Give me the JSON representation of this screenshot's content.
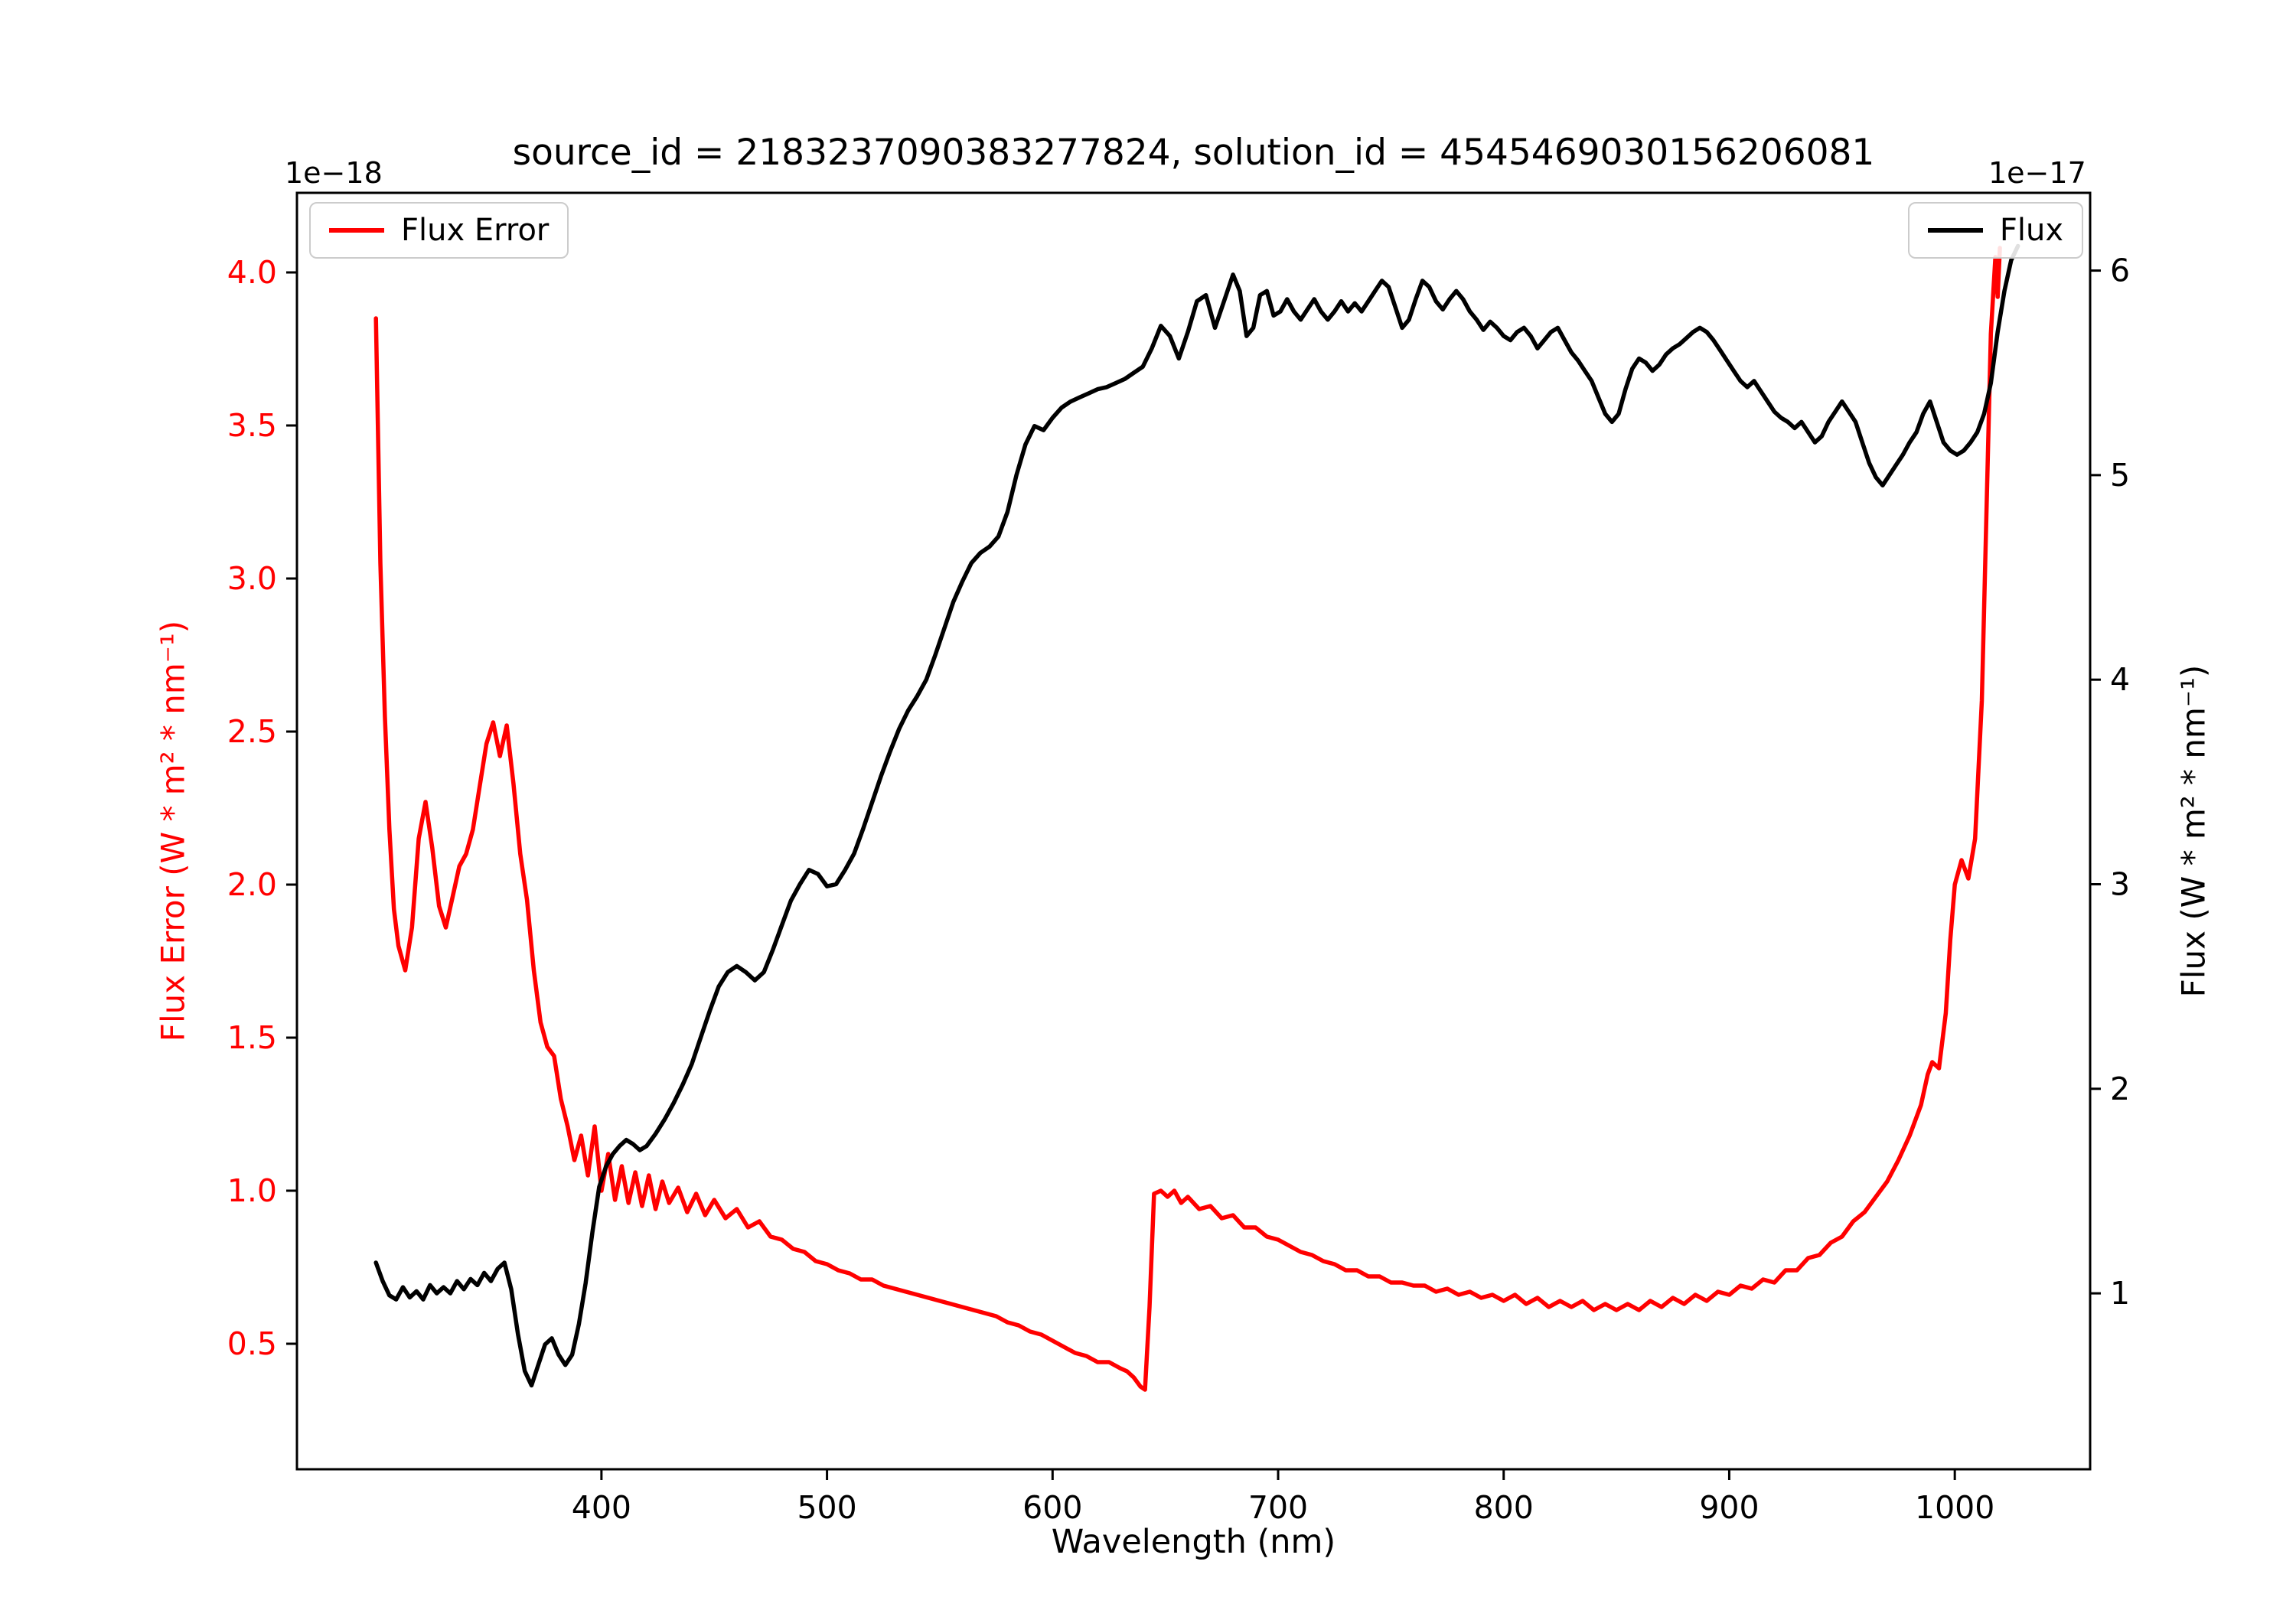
{
  "figure": {
    "title": "source_id = 2183237090383277824, solution_id = 4545469030156206081",
    "xlabel": "Wavelength (nm)",
    "ylabel_left": "Flux Error (W * m² * nm⁻¹)",
    "ylabel_right": "Flux (W * m² * nm⁻¹)",
    "offset_left": "1e−18",
    "offset_right": "1e−17",
    "legend_left_label": "Flux Error",
    "legend_right_label": "Flux"
  },
  "colors": {
    "flux_error": "#ff0000",
    "flux": "#000000",
    "spine": "#000000",
    "legend_border": "#cccccc"
  },
  "chart_data": {
    "type": "line",
    "title": "source_id = 2183237090383277824, solution_id = 4545469030156206081",
    "xlabel": "Wavelength (nm)",
    "ylabel_left": "Flux Error (W * m² * nm⁻¹)",
    "ylabel_right": "Flux (W * m² * nm⁻¹)",
    "y_offset_left": "1e−18",
    "y_offset_right": "1e−17",
    "grid": false,
    "xlim": [
      265,
      1060
    ],
    "ylim_left": [
      0.09,
      4.26
    ],
    "ylim_right": [
      0.14,
      6.38
    ],
    "xticks": [
      400,
      500,
      600,
      700,
      800,
      900,
      1000
    ],
    "yticks_left": [
      0.5,
      1.0,
      1.5,
      2.0,
      2.5,
      3.0,
      3.5,
      4.0
    ],
    "yticks_right": [
      1,
      2,
      3,
      4,
      5,
      6
    ],
    "legend": [
      {
        "label": "Flux Error",
        "color": "#ff0000",
        "position": "upper-left"
      },
      {
        "label": "Flux",
        "color": "#000000",
        "position": "upper-right"
      }
    ],
    "series": [
      {
        "name": "Flux Error",
        "axis": "left",
        "units_scale": "1e-18",
        "color": "#ff0000",
        "x": [
          300,
          302,
          304,
          306,
          308,
          310,
          313,
          316,
          319,
          322,
          325,
          328,
          331,
          334,
          337,
          340,
          343,
          346,
          349,
          352,
          355,
          358,
          361,
          364,
          367,
          370,
          373,
          376,
          379,
          382,
          385,
          388,
          391,
          394,
          397,
          400,
          403,
          406,
          409,
          412,
          415,
          418,
          421,
          424,
          427,
          430,
          434,
          438,
          442,
          446,
          450,
          455,
          460,
          465,
          470,
          475,
          480,
          485,
          490,
          495,
          500,
          505,
          510,
          515,
          520,
          525,
          530,
          535,
          540,
          545,
          550,
          555,
          560,
          565,
          570,
          575,
          580,
          585,
          590,
          595,
          600,
          605,
          610,
          615,
          620,
          625,
          630,
          633,
          636,
          639,
          641,
          643,
          645,
          648,
          651,
          654,
          657,
          660,
          665,
          670,
          675,
          680,
          685,
          690,
          695,
          700,
          705,
          710,
          715,
          720,
          725,
          730,
          735,
          740,
          745,
          750,
          755,
          760,
          765,
          770,
          775,
          780,
          785,
          790,
          795,
          800,
          805,
          810,
          815,
          820,
          825,
          830,
          835,
          840,
          845,
          850,
          855,
          860,
          865,
          870,
          875,
          880,
          885,
          890,
          895,
          900,
          905,
          910,
          915,
          920,
          925,
          930,
          935,
          940,
          945,
          950,
          955,
          960,
          965,
          970,
          975,
          980,
          985,
          988,
          990,
          993,
          996,
          998,
          1000,
          1003,
          1006,
          1009,
          1012,
          1014,
          1016,
          1018,
          1019,
          1020
        ],
        "y": [
          3.85,
          3.05,
          2.55,
          2.18,
          1.92,
          1.8,
          1.72,
          1.86,
          2.15,
          2.27,
          2.12,
          1.93,
          1.86,
          1.96,
          2.06,
          2.1,
          2.18,
          2.32,
          2.46,
          2.53,
          2.42,
          2.52,
          2.33,
          2.1,
          1.95,
          1.72,
          1.55,
          1.47,
          1.44,
          1.3,
          1.21,
          1.1,
          1.18,
          1.05,
          1.21,
          1.0,
          1.12,
          0.97,
          1.08,
          0.96,
          1.06,
          0.95,
          1.05,
          0.94,
          1.03,
          0.96,
          1.01,
          0.93,
          0.99,
          0.92,
          0.97,
          0.91,
          0.94,
          0.88,
          0.9,
          0.85,
          0.84,
          0.81,
          0.8,
          0.77,
          0.76,
          0.74,
          0.73,
          0.71,
          0.71,
          0.69,
          0.68,
          0.67,
          0.66,
          0.65,
          0.64,
          0.63,
          0.62,
          0.61,
          0.6,
          0.59,
          0.57,
          0.56,
          0.54,
          0.53,
          0.51,
          0.49,
          0.47,
          0.46,
          0.44,
          0.44,
          0.42,
          0.41,
          0.39,
          0.36,
          0.35,
          0.62,
          0.99,
          1.0,
          0.98,
          1.0,
          0.96,
          0.98,
          0.94,
          0.95,
          0.91,
          0.92,
          0.88,
          0.88,
          0.85,
          0.84,
          0.82,
          0.8,
          0.79,
          0.77,
          0.76,
          0.74,
          0.74,
          0.72,
          0.72,
          0.7,
          0.7,
          0.69,
          0.69,
          0.67,
          0.68,
          0.66,
          0.67,
          0.65,
          0.66,
          0.64,
          0.66,
          0.63,
          0.65,
          0.62,
          0.64,
          0.62,
          0.64,
          0.61,
          0.63,
          0.61,
          0.63,
          0.61,
          0.64,
          0.62,
          0.65,
          0.63,
          0.66,
          0.64,
          0.67,
          0.66,
          0.69,
          0.68,
          0.71,
          0.7,
          0.74,
          0.74,
          0.78,
          0.79,
          0.83,
          0.85,
          0.9,
          0.93,
          0.98,
          1.03,
          1.1,
          1.18,
          1.28,
          1.38,
          1.42,
          1.4,
          1.58,
          1.82,
          2.0,
          2.08,
          2.02,
          2.15,
          2.6,
          3.2,
          3.8,
          4.05,
          3.92,
          4.08
        ]
      },
      {
        "name": "Flux",
        "axis": "right",
        "units_scale": "1e-17",
        "color": "#000000",
        "x": [
          300,
          303,
          306,
          309,
          312,
          315,
          318,
          321,
          324,
          327,
          330,
          333,
          336,
          339,
          342,
          345,
          348,
          351,
          354,
          357,
          360,
          363,
          366,
          369,
          372,
          375,
          378,
          381,
          384,
          387,
          390,
          393,
          396,
          399,
          402,
          405,
          408,
          411,
          414,
          417,
          420,
          424,
          428,
          432,
          436,
          440,
          444,
          448,
          452,
          456,
          460,
          464,
          468,
          472,
          476,
          480,
          484,
          488,
          492,
          496,
          500,
          504,
          508,
          512,
          516,
          520,
          524,
          528,
          532,
          536,
          540,
          544,
          548,
          552,
          556,
          560,
          564,
          568,
          572,
          576,
          580,
          584,
          588,
          592,
          596,
          600,
          604,
          608,
          612,
          616,
          620,
          624,
          628,
          632,
          636,
          640,
          644,
          648,
          652,
          656,
          660,
          664,
          668,
          672,
          676,
          680,
          683,
          686,
          689,
          692,
          695,
          698,
          701,
          704,
          707,
          710,
          713,
          716,
          719,
          722,
          725,
          728,
          731,
          734,
          737,
          740,
          743,
          746,
          749,
          752,
          755,
          758,
          761,
          764,
          767,
          770,
          773,
          776,
          779,
          782,
          785,
          788,
          791,
          794,
          797,
          800,
          803,
          806,
          809,
          812,
          815,
          818,
          821,
          824,
          827,
          830,
          833,
          836,
          839,
          842,
          845,
          848,
          851,
          854,
          857,
          860,
          863,
          866,
          869,
          872,
          875,
          878,
          881,
          884,
          887,
          890,
          893,
          896,
          899,
          902,
          905,
          908,
          911,
          914,
          917,
          920,
          923,
          926,
          929,
          932,
          935,
          938,
          941,
          944,
          947,
          950,
          953,
          956,
          959,
          962,
          965,
          968,
          971,
          974,
          977,
          980,
          983,
          986,
          989,
          992,
          995,
          998,
          1001,
          1004,
          1007,
          1010,
          1013,
          1016,
          1019,
          1022,
          1025,
          1028
        ],
        "y": [
          1.15,
          1.06,
          0.99,
          0.97,
          1.03,
          0.98,
          1.01,
          0.97,
          1.04,
          1.0,
          1.03,
          1.0,
          1.06,
          1.02,
          1.07,
          1.04,
          1.1,
          1.06,
          1.12,
          1.15,
          1.02,
          0.8,
          0.62,
          0.55,
          0.65,
          0.75,
          0.78,
          0.7,
          0.65,
          0.7,
          0.85,
          1.05,
          1.3,
          1.52,
          1.62,
          1.68,
          1.72,
          1.75,
          1.73,
          1.7,
          1.72,
          1.78,
          1.85,
          1.93,
          2.02,
          2.12,
          2.25,
          2.38,
          2.5,
          2.57,
          2.6,
          2.57,
          2.53,
          2.57,
          2.68,
          2.8,
          2.92,
          3.0,
          3.07,
          3.05,
          2.99,
          3.0,
          3.07,
          3.15,
          3.27,
          3.4,
          3.53,
          3.65,
          3.76,
          3.85,
          3.92,
          4.0,
          4.12,
          4.25,
          4.38,
          4.48,
          4.57,
          4.62,
          4.65,
          4.7,
          4.82,
          5.0,
          5.15,
          5.24,
          5.22,
          5.28,
          5.33,
          5.36,
          5.38,
          5.4,
          5.42,
          5.43,
          5.45,
          5.47,
          5.5,
          5.53,
          5.62,
          5.73,
          5.68,
          5.57,
          5.7,
          5.85,
          5.88,
          5.72,
          5.85,
          5.98,
          5.9,
          5.68,
          5.72,
          5.88,
          5.9,
          5.78,
          5.8,
          5.86,
          5.8,
          5.76,
          5.81,
          5.86,
          5.8,
          5.76,
          5.8,
          5.85,
          5.8,
          5.84,
          5.8,
          5.85,
          5.9,
          5.95,
          5.92,
          5.82,
          5.72,
          5.76,
          5.86,
          5.95,
          5.92,
          5.85,
          5.81,
          5.86,
          5.9,
          5.86,
          5.8,
          5.76,
          5.71,
          5.75,
          5.72,
          5.68,
          5.66,
          5.7,
          5.72,
          5.68,
          5.62,
          5.66,
          5.7,
          5.72,
          5.66,
          5.6,
          5.56,
          5.51,
          5.46,
          5.38,
          5.3,
          5.26,
          5.3,
          5.42,
          5.52,
          5.57,
          5.55,
          5.51,
          5.54,
          5.59,
          5.62,
          5.64,
          5.67,
          5.7,
          5.72,
          5.7,
          5.66,
          5.61,
          5.56,
          5.51,
          5.46,
          5.43,
          5.46,
          5.41,
          5.36,
          5.31,
          5.28,
          5.26,
          5.23,
          5.26,
          5.21,
          5.16,
          5.19,
          5.26,
          5.31,
          5.36,
          5.31,
          5.26,
          5.16,
          5.06,
          4.99,
          4.95,
          5.0,
          5.05,
          5.1,
          5.16,
          5.21,
          5.3,
          5.36,
          5.26,
          5.16,
          5.12,
          5.1,
          5.12,
          5.16,
          5.21,
          5.3,
          5.45,
          5.7,
          5.9,
          6.05,
          6.12
        ]
      }
    ]
  }
}
